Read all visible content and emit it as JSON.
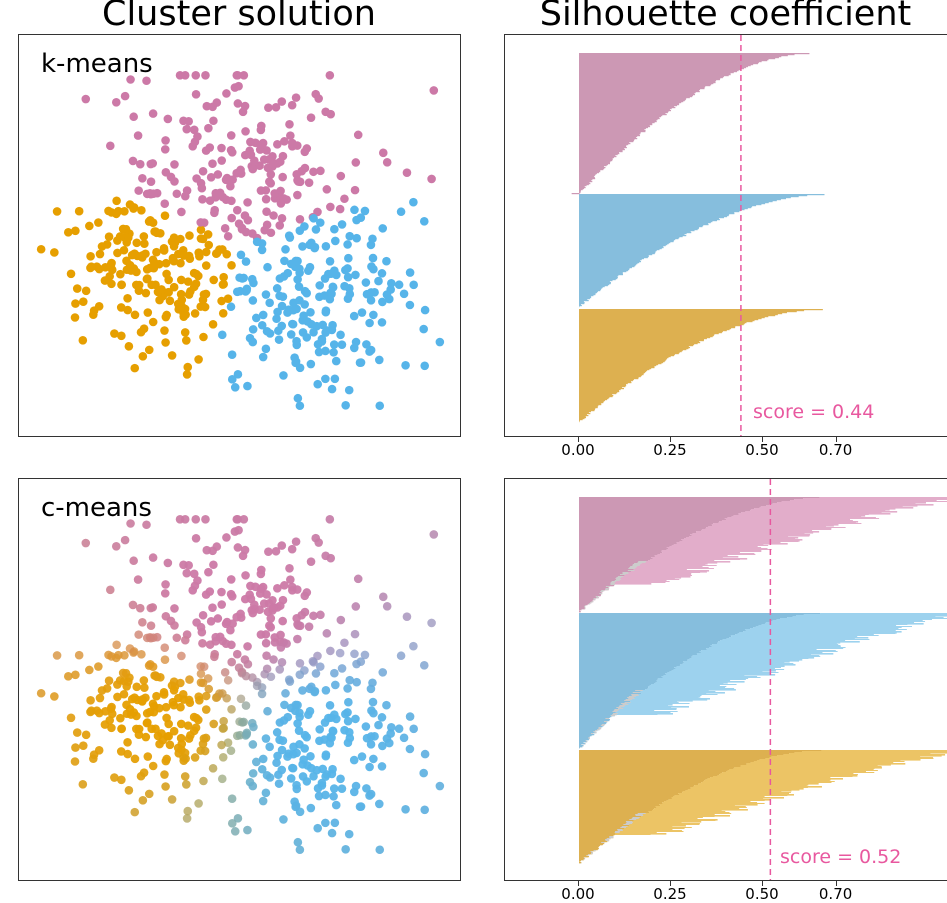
{
  "chart_data": [
    {
      "type": "scatter",
      "title": "Cluster solution",
      "panel_label": "k-means",
      "hard_assignment": true,
      "clusters": [
        {
          "name": "pink",
          "color": "#cc79a7",
          "center": [
            0.5,
            0.32
          ],
          "spread": [
            0.14,
            0.12
          ],
          "n": 200
        },
        {
          "name": "orange",
          "color": "#e69f00",
          "center": [
            0.32,
            0.59
          ],
          "spread": [
            0.11,
            0.1
          ],
          "n": 200
        },
        {
          "name": "blue",
          "color": "#56b4e9",
          "center": [
            0.67,
            0.65
          ],
          "spread": [
            0.12,
            0.12
          ],
          "n": 200
        }
      ],
      "xlim": [
        0,
        1
      ],
      "ylim": [
        0,
        1
      ],
      "axes_ticks": false
    },
    {
      "type": "bar",
      "orientation": "horizontal",
      "title": "Silhouette coefficient",
      "xticks": [
        "0.00",
        "0.25",
        "0.50",
        "0.70"
      ],
      "xtick_values": [
        0.0,
        0.25,
        0.5,
        0.7
      ],
      "xlim": [
        -0.2,
        1.0
      ],
      "score": 0.44,
      "score_label": "score = 0.44",
      "score_color": "#e8589f",
      "groups": [
        {
          "name": "pink",
          "color": "#cc98b4",
          "max": 0.63,
          "min": -0.02,
          "fuzzy": false
        },
        {
          "name": "blue",
          "color": "#86bedd",
          "max": 0.67,
          "min": 0.0,
          "fuzzy": false
        },
        {
          "name": "orange",
          "color": "#ddb050",
          "max": 0.66,
          "min": 0.0,
          "fuzzy": false
        }
      ]
    },
    {
      "type": "scatter",
      "title": "",
      "panel_label": "c-means",
      "hard_assignment": false,
      "clusters": [
        {
          "name": "pink",
          "color": "#cc79a7",
          "center": [
            0.5,
            0.32
          ],
          "spread": [
            0.14,
            0.12
          ],
          "n": 200
        },
        {
          "name": "orange",
          "color": "#e69f00",
          "center": [
            0.32,
            0.59
          ],
          "spread": [
            0.11,
            0.1
          ],
          "n": 200
        },
        {
          "name": "blue",
          "color": "#56b4e9",
          "center": [
            0.67,
            0.65
          ],
          "spread": [
            0.12,
            0.12
          ],
          "n": 200
        }
      ],
      "xlim": [
        0,
        1
      ],
      "ylim": [
        0,
        1
      ],
      "axes_ticks": false
    },
    {
      "type": "bar",
      "orientation": "horizontal",
      "title": "",
      "xticks": [
        "0.00",
        "0.25",
        "0.50",
        "0.70"
      ],
      "xtick_values": [
        0.0,
        0.25,
        0.5,
        0.7
      ],
      "xlim": [
        -0.2,
        1.0
      ],
      "score": 0.52,
      "score_label": "score = 0.52",
      "score_color": "#e8589f",
      "groups": [
        {
          "name": "pink",
          "color": "#cc98b4",
          "light": "#e2adca",
          "max": 1.0,
          "min": -0.02,
          "fuzzy": true
        },
        {
          "name": "blue",
          "color": "#86bedd",
          "light": "#9dd2ee",
          "max": 1.0,
          "min": -0.01,
          "fuzzy": true
        },
        {
          "name": "orange",
          "color": "#ddb050",
          "light": "#ecc465",
          "max": 1.0,
          "min": 0.0,
          "fuzzy": true
        }
      ],
      "residual_color": "#cccccc"
    }
  ],
  "titles": {
    "left": "Cluster solution",
    "right": "Silhouette coefficient"
  }
}
